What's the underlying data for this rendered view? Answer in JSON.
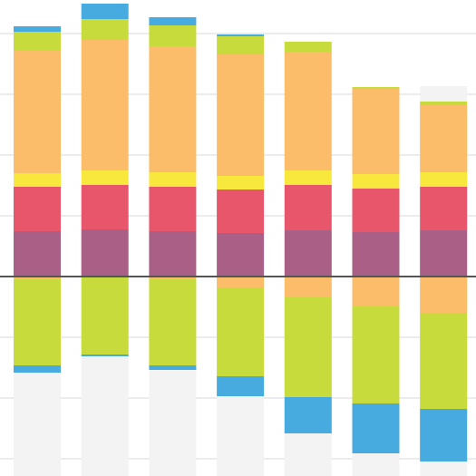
{
  "chart_data": {
    "type": "bar",
    "stacked": true,
    "diverging": true,
    "title": "",
    "xlabel": "",
    "ylabel": "",
    "ylim": [
      -240,
      310
    ],
    "grid": true,
    "legend": "none",
    "categories": [
      "",
      "",
      "",
      "",
      "",
      "",
      ""
    ],
    "positive_series": [
      {
        "color": "#a95f86",
        "values": [
          50,
          52,
          50,
          48,
          51,
          49,
          51
        ]
      },
      {
        "color": "#e8566b",
        "values": [
          49,
          49,
          49,
          48,
          50,
          48,
          48
        ]
      },
      {
        "color": "#f8e73d",
        "values": [
          15,
          16,
          16,
          15,
          16,
          16,
          16
        ]
      },
      {
        "color": "#fbbd69",
        "values": [
          135,
          144,
          139,
          134,
          131,
          94,
          74
        ]
      },
      {
        "color": "#c8db3c",
        "values": [
          21,
          23,
          23,
          20,
          11,
          2,
          4
        ]
      },
      {
        "color": "#48abe0",
        "values": [
          6,
          17,
          9,
          2,
          0,
          0,
          0
        ]
      }
    ],
    "negative_series": [
      {
        "color": "#fbbd69",
        "values": [
          -3,
          -1,
          -3,
          -12,
          -23,
          -33,
          -40
        ]
      },
      {
        "color": "#c8db3c",
        "values": [
          -95,
          -85,
          -95,
          -98,
          -110,
          -107,
          -106
        ]
      },
      {
        "color": "#48abe0",
        "values": [
          -8,
          -2,
          -5,
          -22,
          -40,
          -55,
          -58
        ]
      }
    ],
    "background_extent": [
      {
        "pos": 0,
        "neg": -240
      },
      {
        "pos": 0,
        "neg": -240
      },
      {
        "pos": 0,
        "neg": -240
      },
      {
        "pos": 0,
        "neg": -240
      },
      {
        "pos": 0,
        "neg": -240
      },
      {
        "pos": 0,
        "neg": -240
      },
      {
        "pos": 210,
        "neg": -240
      }
    ]
  }
}
